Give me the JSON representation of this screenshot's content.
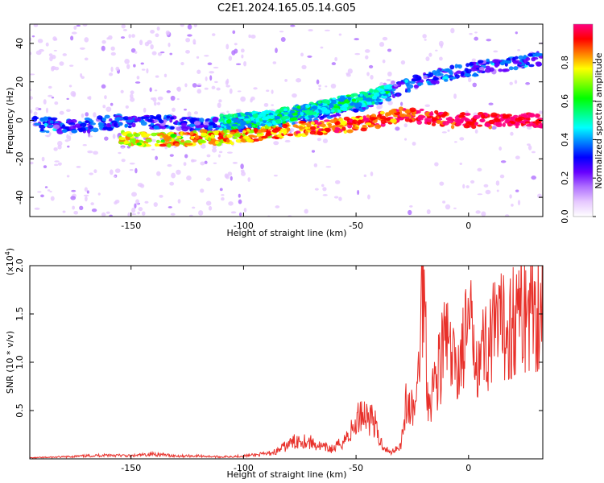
{
  "title": "C2E1.2024.165.05.14.G05",
  "colors": {
    "colormap": [
      "#ffffff",
      "#e6c8ff",
      "#b070ff",
      "#6600ff",
      "#0000ff",
      "#0080ff",
      "#00ffff",
      "#00ff80",
      "#00ff00",
      "#80ff00",
      "#ffff00",
      "#ff8000",
      "#ff0000",
      "#ff0080"
    ],
    "snr_line": "#e8302a",
    "noise_dot": "#c8a2f0"
  },
  "chart_data": [
    {
      "type": "heatmap",
      "xlabel": "Height of straight line (km)",
      "ylabel": "Frequency (Hz)",
      "xlim": [
        -195,
        33
      ],
      "ylim": [
        -50,
        50
      ],
      "x_ticks": [
        -150,
        -100,
        -50,
        0
      ],
      "y_ticks": [
        -40,
        -20,
        0,
        20,
        40
      ],
      "colorbar": {
        "label": "Normalized spectral amplitude",
        "range": [
          0,
          1
        ],
        "ticks": [
          "0.0",
          "0.2",
          "0.4",
          "0.6",
          "0.8"
        ]
      },
      "ridges": [
        {
          "x": [
            -193,
            -180,
            -165,
            -150,
            -140,
            -130,
            -120,
            -110,
            -100,
            -90,
            -80,
            -70,
            -60,
            -50,
            -40,
            -30,
            -20,
            -10,
            0,
            10,
            20,
            33
          ],
          "y": [
            -2,
            -3,
            -2,
            0,
            -1,
            -2,
            -2,
            -2,
            -2,
            -1,
            1,
            3,
            5,
            8,
            12,
            17,
            21,
            24,
            26,
            28,
            30,
            32
          ],
          "intensity": "weak"
        },
        {
          "x": [
            -155,
            -140,
            -130,
            -120,
            -110,
            -100,
            -90,
            -80,
            -70,
            -60,
            -50,
            -40,
            -30,
            -20,
            -10,
            0,
            10,
            20,
            33
          ],
          "y": [
            -9,
            -10,
            -10,
            -9,
            -9,
            -8,
            -7,
            -5,
            -4,
            -3,
            -2,
            0,
            3,
            2,
            0,
            0,
            0,
            0,
            0
          ],
          "intensity": "strong"
        },
        {
          "x": [
            -110,
            -100,
            -90,
            -80,
            -70,
            -60,
            -50,
            -40,
            -35
          ],
          "y": [
            -1,
            0,
            1,
            3,
            5,
            8,
            10,
            13,
            16
          ],
          "intensity": "medium"
        }
      ]
    },
    {
      "type": "line",
      "xlabel": "Height of straight line (km)",
      "ylabel": "SNR (10 * v/v)",
      "multiplier": "(x10^4)",
      "xlim": [
        -195,
        33
      ],
      "ylim": [
        0,
        2.0
      ],
      "x_ticks": [
        -150,
        -100,
        -50,
        0
      ],
      "y_ticks": [
        0.5,
        1.0,
        1.5,
        2.0
      ],
      "series": [
        {
          "x": [
            -195,
            -180,
            -170,
            -160,
            -150,
            -140,
            -130,
            -120,
            -110,
            -100,
            -90,
            -85,
            -80,
            -75,
            -70,
            -65,
            -60,
            -55,
            -50,
            -48,
            -45,
            -42,
            -40,
            -35,
            -30,
            -28,
            -25,
            -23,
            -20,
            -18,
            -15,
            -12,
            -10,
            -8,
            -5,
            -2,
            0,
            5,
            10,
            15,
            18,
            20,
            25,
            30,
            33
          ],
          "y": [
            0.01,
            0.02,
            0.03,
            0.04,
            0.03,
            0.05,
            0.03,
            0.03,
            0.02,
            0.03,
            0.05,
            0.08,
            0.15,
            0.2,
            0.17,
            0.12,
            0.1,
            0.2,
            0.35,
            0.5,
            0.45,
            0.4,
            0.2,
            0.06,
            0.15,
            0.55,
            0.5,
            0.6,
            2.0,
            0.6,
            0.8,
            1.05,
            1.3,
            1.0,
            0.95,
            1.2,
            1.35,
            1.1,
            1.25,
            1.35,
            1.4,
            1.45,
            1.55,
            1.6,
            1.65
          ]
        }
      ]
    }
  ]
}
